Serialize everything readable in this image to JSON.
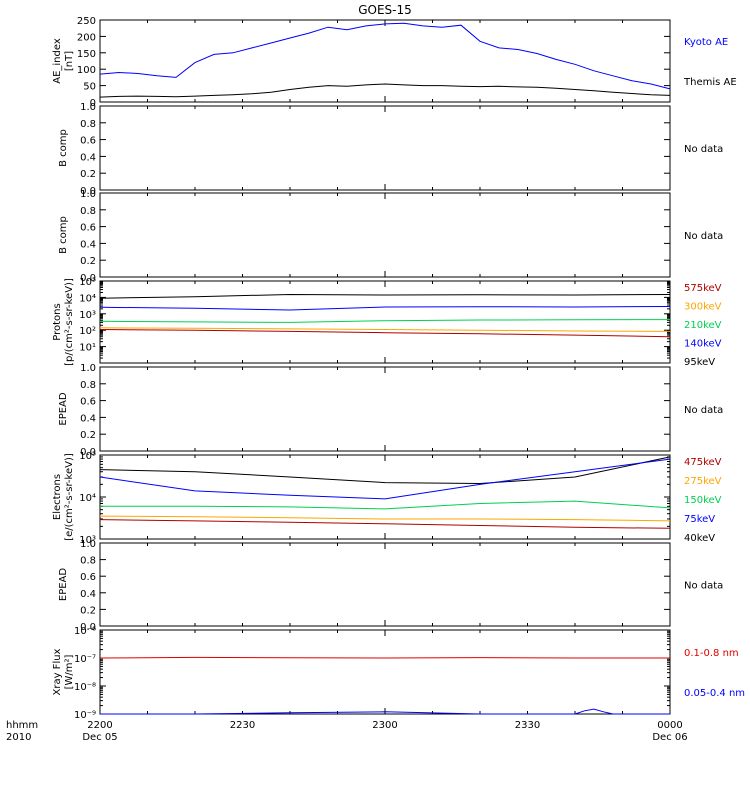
{
  "title": "GOES-15",
  "time_axis": {
    "ticks": [
      {
        "label": "2200",
        "sub": "Dec 05"
      },
      {
        "label": "2230",
        "sub": ""
      },
      {
        "label": "2300",
        "sub": ""
      },
      {
        "label": "2330",
        "sub": ""
      },
      {
        "label": "0000",
        "sub": "Dec 06"
      }
    ],
    "corner_label_1": "hhmm",
    "corner_label_2": "2010"
  },
  "colors": {
    "black": "#000000",
    "blue": "#0000ff",
    "green": "#00d050",
    "orange": "#ffa500",
    "darkred": "#b00000",
    "red": "#e00000"
  },
  "chart_data": [
    {
      "type": "line",
      "ylabel": [
        "AE_index",
        "[nT]"
      ],
      "ylim": [
        0,
        250
      ],
      "y_ticks": [
        "0",
        "50",
        "100",
        "150",
        "200",
        "250"
      ],
      "legend": [
        {
          "label": "Kyoto AE",
          "color": "#0000ff"
        },
        {
          "label": "Themis AE",
          "color": "#000000"
        }
      ],
      "series": [
        {
          "name": "Kyoto AE",
          "color": "#0000ff",
          "x": [
            0,
            2,
            4,
            6,
            8,
            10,
            12,
            14,
            16,
            18,
            20,
            22,
            24,
            26,
            28,
            30,
            32,
            34,
            36,
            38,
            40,
            42,
            44,
            46,
            48,
            50,
            52,
            54,
            56,
            58,
            60
          ],
          "y": [
            85,
            90,
            87,
            80,
            75,
            120,
            145,
            150,
            165,
            180,
            195,
            210,
            228,
            220,
            232,
            238,
            240,
            232,
            228,
            234,
            185,
            165,
            160,
            148,
            130,
            115,
            95,
            80,
            65,
            55,
            40
          ]
        },
        {
          "name": "Themis AE",
          "color": "#000000",
          "x": [
            0,
            2,
            4,
            6,
            8,
            10,
            12,
            14,
            16,
            18,
            20,
            22,
            24,
            26,
            28,
            30,
            32,
            34,
            36,
            38,
            40,
            42,
            44,
            46,
            48,
            50,
            52,
            54,
            56,
            58,
            60
          ],
          "y": [
            15,
            17,
            18,
            17,
            16,
            18,
            20,
            22,
            25,
            30,
            38,
            45,
            50,
            48,
            52,
            55,
            52,
            50,
            50,
            48,
            47,
            48,
            46,
            45,
            42,
            38,
            34,
            30,
            26,
            22,
            20
          ]
        }
      ]
    },
    {
      "type": "line",
      "ylabel": [
        "B comp"
      ],
      "ylim": [
        0,
        1
      ],
      "y_ticks": [
        "0.0",
        "0.2",
        "0.4",
        "0.6",
        "0.8",
        "1.0"
      ],
      "note": "No data",
      "series": []
    },
    {
      "type": "line",
      "ylabel": [
        "B comp"
      ],
      "ylim": [
        0,
        1
      ],
      "y_ticks": [
        "0.0",
        "0.2",
        "0.4",
        "0.6",
        "0.8",
        "1.0"
      ],
      "note": "No data",
      "series": []
    },
    {
      "type": "line",
      "log": true,
      "ylabel": [
        "Protons",
        "[p/(cm²-s-sr-keV)]"
      ],
      "ylim": [
        1,
        100000
      ],
      "y_ticks": [
        "10¹",
        "10²",
        "10³",
        "10⁴",
        "10⁵"
      ],
      "legend": [
        {
          "label": "575keV",
          "color": "#b00000"
        },
        {
          "label": "300keV",
          "color": "#ffa500"
        },
        {
          "label": "210keV",
          "color": "#00d050"
        },
        {
          "label": "140keV",
          "color": "#0000ff"
        },
        {
          "label": "95keV",
          "color": "#000000"
        }
      ],
      "series": [
        {
          "name": "95keV",
          "color": "#000000",
          "x": [
            0,
            10,
            20,
            30,
            40,
            50,
            60
          ],
          "y": [
            9000,
            11000,
            15000,
            14000,
            14500,
            14000,
            15000
          ]
        },
        {
          "name": "140keV",
          "color": "#0000ff",
          "x": [
            0,
            10,
            20,
            30,
            40,
            50,
            60
          ],
          "y": [
            2500,
            2200,
            1700,
            2600,
            2700,
            2600,
            2800
          ]
        },
        {
          "name": "210keV",
          "color": "#00d050",
          "x": [
            0,
            10,
            20,
            30,
            40,
            50,
            60
          ],
          "y": [
            350,
            320,
            300,
            380,
            420,
            430,
            440
          ]
        },
        {
          "name": "300keV",
          "color": "#ffa500",
          "x": [
            0,
            10,
            20,
            30,
            40,
            50,
            60
          ],
          "y": [
            140,
            130,
            120,
            110,
            100,
            90,
            85
          ]
        },
        {
          "name": "575keV",
          "color": "#b00000",
          "x": [
            0,
            10,
            20,
            30,
            40,
            50,
            60
          ],
          "y": [
            110,
            100,
            85,
            70,
            60,
            50,
            40
          ]
        }
      ]
    },
    {
      "type": "line",
      "ylabel": [
        "EPEAD"
      ],
      "ylim": [
        0,
        1
      ],
      "y_ticks": [
        "0.0",
        "0.2",
        "0.4",
        "0.6",
        "0.8",
        "1.0"
      ],
      "note": "No data",
      "series": []
    },
    {
      "type": "line",
      "log": true,
      "ylabel": [
        "Electrons",
        "[e/(cm²-s-sr-keV)]"
      ],
      "ylim": [
        1000,
        100000
      ],
      "y_ticks": [
        "10³",
        "10⁴",
        "10⁵"
      ],
      "legend": [
        {
          "label": "475keV",
          "color": "#b00000"
        },
        {
          "label": "275keV",
          "color": "#ffa500"
        },
        {
          "label": "150keV",
          "color": "#00d050"
        },
        {
          "label": "75keV",
          "color": "#0000ff"
        },
        {
          "label": "40keV",
          "color": "#000000"
        }
      ],
      "series": [
        {
          "name": "40keV",
          "color": "#000000",
          "x": [
            0,
            10,
            20,
            30,
            40,
            50,
            60
          ],
          "y": [
            45000,
            40000,
            30000,
            22000,
            21000,
            30000,
            90000
          ]
        },
        {
          "name": "75keV",
          "color": "#0000ff",
          "x": [
            0,
            10,
            20,
            30,
            40,
            50,
            60
          ],
          "y": [
            30000,
            14000,
            11000,
            9000,
            20000,
            40000,
            80000
          ]
        },
        {
          "name": "150keV",
          "color": "#00d050",
          "x": [
            0,
            10,
            20,
            30,
            40,
            50,
            60
          ],
          "y": [
            6000,
            6000,
            5800,
            5200,
            7000,
            8000,
            5500
          ]
        },
        {
          "name": "275keV",
          "color": "#ffa500",
          "x": [
            0,
            10,
            20,
            30,
            40,
            50,
            60
          ],
          "y": [
            3500,
            3400,
            3200,
            3000,
            3000,
            2900,
            2700
          ]
        },
        {
          "name": "475keV",
          "color": "#b00000",
          "x": [
            0,
            10,
            20,
            30,
            40,
            50,
            60
          ],
          "y": [
            2900,
            2700,
            2500,
            2300,
            2100,
            1900,
            1800
          ]
        }
      ]
    },
    {
      "type": "line",
      "ylabel": [
        "EPEAD"
      ],
      "ylim": [
        0,
        1
      ],
      "y_ticks": [
        "0.0",
        "0.2",
        "0.4",
        "0.6",
        "0.8",
        "1.0"
      ],
      "note": "No data",
      "series": []
    },
    {
      "type": "line",
      "log": true,
      "ylabel": [
        "Xray Flux",
        "[W/m²]"
      ],
      "ylim": [
        1e-09,
        1e-06
      ],
      "y_ticks": [
        "10⁻⁹",
        "10⁻⁸",
        "10⁻⁷",
        "10⁻⁶"
      ],
      "legend": [
        {
          "label": "0.1-0.8 nm",
          "color": "#e00000"
        },
        {
          "label": "0.05-0.4 nm",
          "color": "#0000ff"
        }
      ],
      "series": [
        {
          "name": "0.1-0.8 nm",
          "color": "#e00000",
          "x": [
            0,
            10,
            20,
            30,
            40,
            50,
            60
          ],
          "y": [
            1e-07,
            1.05e-07,
            1.02e-07,
            1e-07,
            1.03e-07,
            1e-07,
            1e-07
          ]
        },
        {
          "name": "0.05-0.4 nm",
          "color": "#0000ff",
          "x": [
            0,
            10,
            20,
            30,
            40,
            50,
            51,
            52,
            53,
            54,
            56,
            60
          ],
          "y": [
            1e-09,
            1e-09,
            1.1e-09,
            1.2e-09,
            1e-09,
            1e-09,
            1.3e-09,
            1.5e-09,
            1.2e-09,
            1e-09,
            1e-09,
            1e-09
          ]
        }
      ]
    }
  ]
}
